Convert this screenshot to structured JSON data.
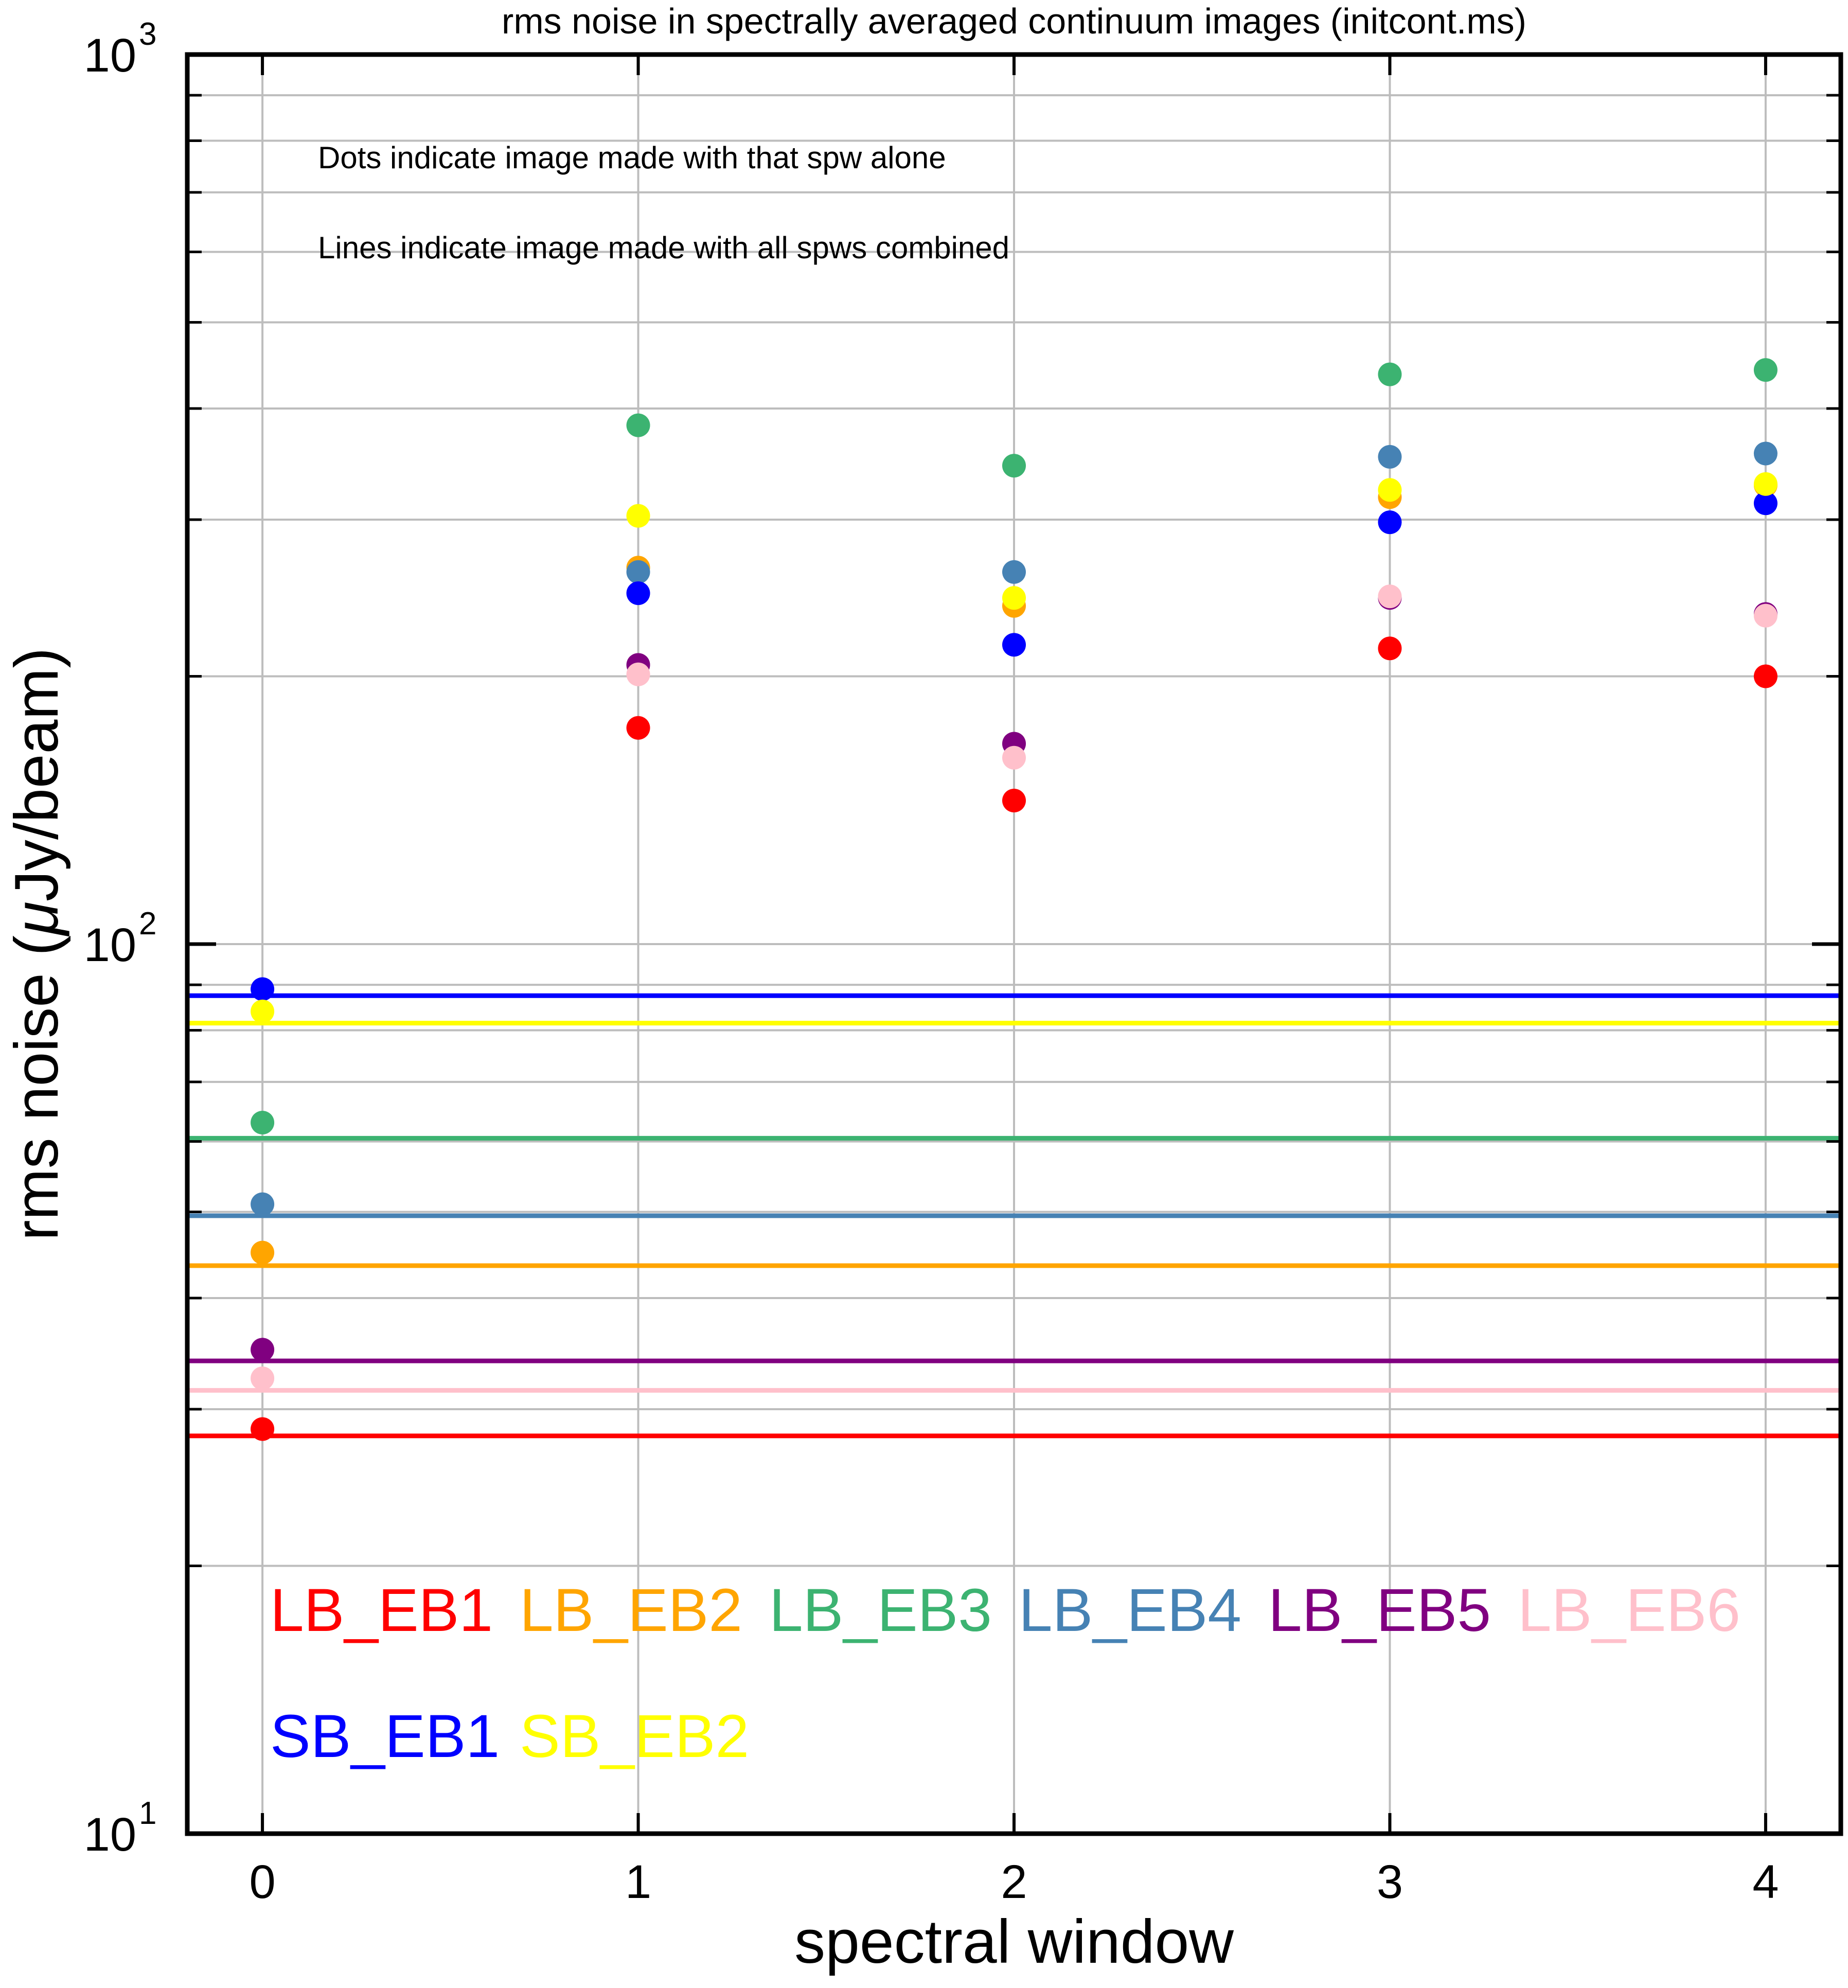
{
  "chart_data": {
    "type": "scatter",
    "title": "rms noise in spectrally averaged continuum images (initcont.ms)",
    "xlabel": "spectral window",
    "ylabel_prefix": "rms noise (",
    "ylabel_mu": "μ",
    "ylabel_suffix": "Jy/beam)",
    "x_ticks": [
      0,
      1,
      2,
      3,
      4
    ],
    "x_tick_labels": [
      "0",
      "1",
      "2",
      "3",
      "4"
    ],
    "xlim": [
      -0.2,
      4.2
    ],
    "yscale": "log",
    "ylim": [
      10,
      1000
    ],
    "y_major_ticks": [
      10,
      100,
      1000
    ],
    "y_tick_base": "10",
    "y_tick_exponents": [
      "1",
      "2",
      "3"
    ],
    "grid": true,
    "annotations": [
      "Dots indicate image made with that spw alone",
      "Lines indicate image made with all spws combined"
    ],
    "legend_placement": "bottom-left, text colored by series",
    "series": [
      {
        "name": "LB_EB1",
        "color": "#ff0000",
        "points": [
          28.5,
          175,
          145,
          215,
          200
        ],
        "combined": 28.0
      },
      {
        "name": "LB_EB2",
        "color": "#ffa500",
        "points": [
          45,
          265,
          240,
          318,
          328
        ],
        "combined": 43.5
      },
      {
        "name": "LB_EB3",
        "color": "#3cb371",
        "points": [
          63,
          383,
          345,
          437,
          442
        ],
        "combined": 60.5
      },
      {
        "name": "LB_EB4",
        "color": "#4682b4",
        "points": [
          51,
          262,
          262,
          353,
          356
        ],
        "combined": 49.5
      },
      {
        "name": "LB_EB5",
        "color": "#800080",
        "points": [
          35,
          206,
          168,
          245,
          235
        ],
        "combined": 34.0
      },
      {
        "name": "LB_EB6",
        "color": "#ffc0cb",
        "points": [
          32.5,
          201,
          162,
          246,
          234
        ],
        "combined": 31.5
      },
      {
        "name": "SB_EB1",
        "color": "#0000ff",
        "points": [
          89,
          248,
          217,
          298,
          313
        ],
        "combined": 87.5
      },
      {
        "name": "SB_EB2",
        "color": "#ffff00",
        "points": [
          84,
          303,
          245,
          324,
          329
        ],
        "combined": 81.5
      }
    ]
  }
}
